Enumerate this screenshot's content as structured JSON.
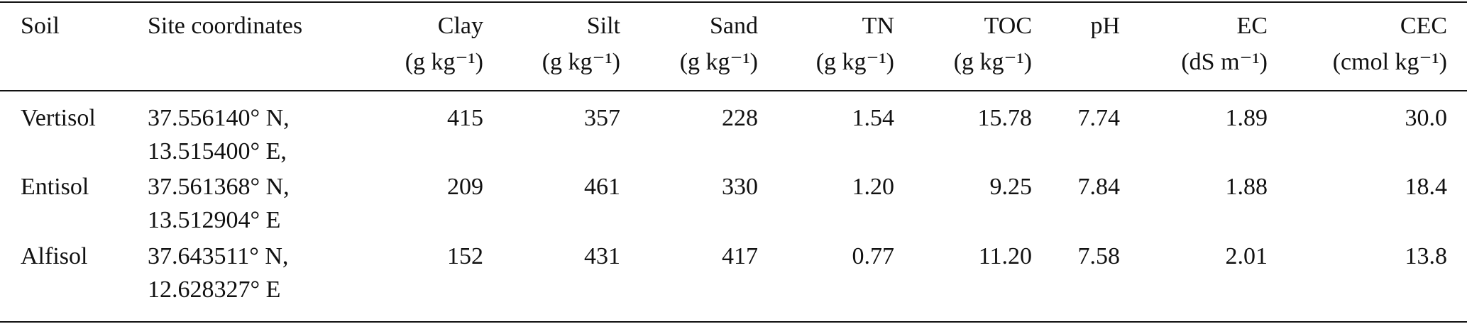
{
  "table": {
    "columns": [
      {
        "name": "Soil"
      },
      {
        "name": "Site coordinates"
      },
      {
        "name": "Clay",
        "unit": "(g kg⁻¹)"
      },
      {
        "name": "Silt",
        "unit": "(g kg⁻¹)"
      },
      {
        "name": "Sand",
        "unit": "(g kg⁻¹)"
      },
      {
        "name": "TN",
        "unit": "(g kg⁻¹)"
      },
      {
        "name": "TOC",
        "unit": "(g kg⁻¹)"
      },
      {
        "name": "pH"
      },
      {
        "name": "EC",
        "unit": "(dS m⁻¹)"
      },
      {
        "name": "CEC",
        "unit": "(cmol kg⁻¹)"
      }
    ],
    "rows": [
      [
        "Vertisol",
        [
          "37.556140° N,",
          "13.515400° E,"
        ],
        "415",
        "357",
        "228",
        "1.54",
        "15.78",
        "7.74",
        "1.89",
        "30.0"
      ],
      [
        "Entisol",
        [
          "37.561368° N,",
          "13.512904° E"
        ],
        "209",
        "461",
        "330",
        "1.20",
        "9.25",
        "7.84",
        "1.88",
        "18.4"
      ],
      [
        "Alfisol",
        [
          "37.643511° N,",
          "12.628327° E"
        ],
        "152",
        "431",
        "417",
        "0.77",
        "11.20",
        "7.58",
        "2.01",
        "13.8"
      ]
    ]
  }
}
